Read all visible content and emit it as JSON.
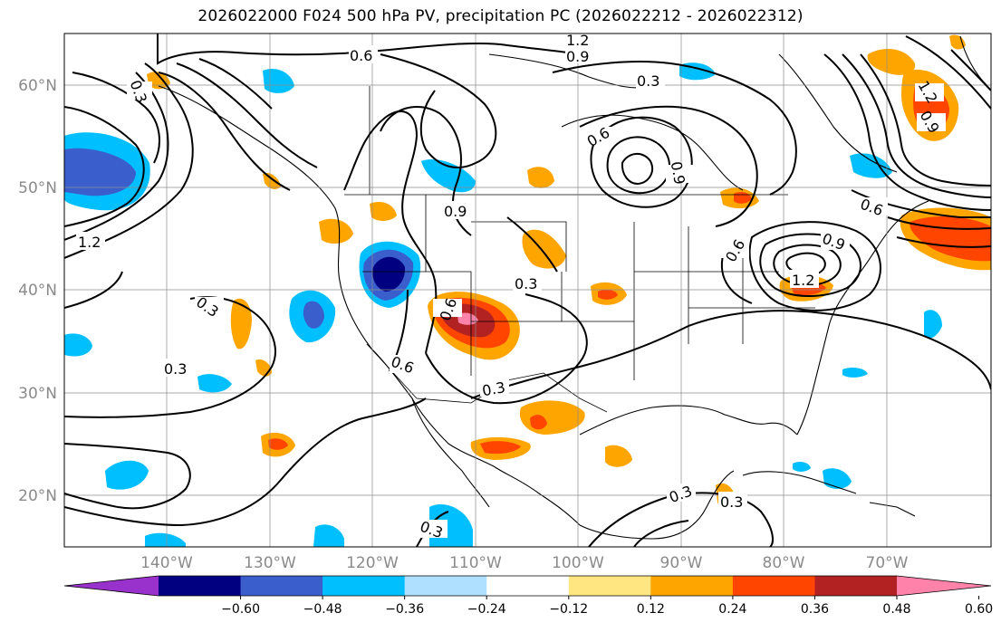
{
  "title": "2026022000 F024 500 hPa PV, precipitation PC (2026022212 - 2026022312)",
  "latitudes": [
    "60°N",
    "50°N",
    "40°N",
    "30°N",
    "20°N"
  ],
  "longitudes": [
    "140°W",
    "130°W",
    "120°W",
    "110°W",
    "100°W",
    "90°W",
    "80°W",
    "70°W"
  ],
  "colorbar": {
    "ticks": [
      "−0.60",
      "−0.48",
      "−0.36",
      "−0.24",
      "−0.12",
      "0.12",
      "0.24",
      "0.36",
      "0.48",
      "0.60"
    ],
    "colors": [
      "#9932cc",
      "#000080",
      "#3a5fcd",
      "#00bfff",
      "#b0e0ff",
      "#ffffff",
      "#ffe680",
      "#ffa500",
      "#ff4500",
      "#b22222",
      "#ff82ab"
    ]
  },
  "contour_labels": [
    "0.6",
    "1.2",
    "0.9",
    "0.3",
    "1.2",
    "0.9",
    "0.3",
    "0.3",
    "0.6",
    "0.6",
    "0.9",
    "0.9",
    "0.3",
    "0.3",
    "0.3",
    "0.3",
    "1.2",
    "0.6",
    "0.9",
    "1.2",
    "0.6",
    "0.6",
    "0.3",
    "0.3"
  ]
}
